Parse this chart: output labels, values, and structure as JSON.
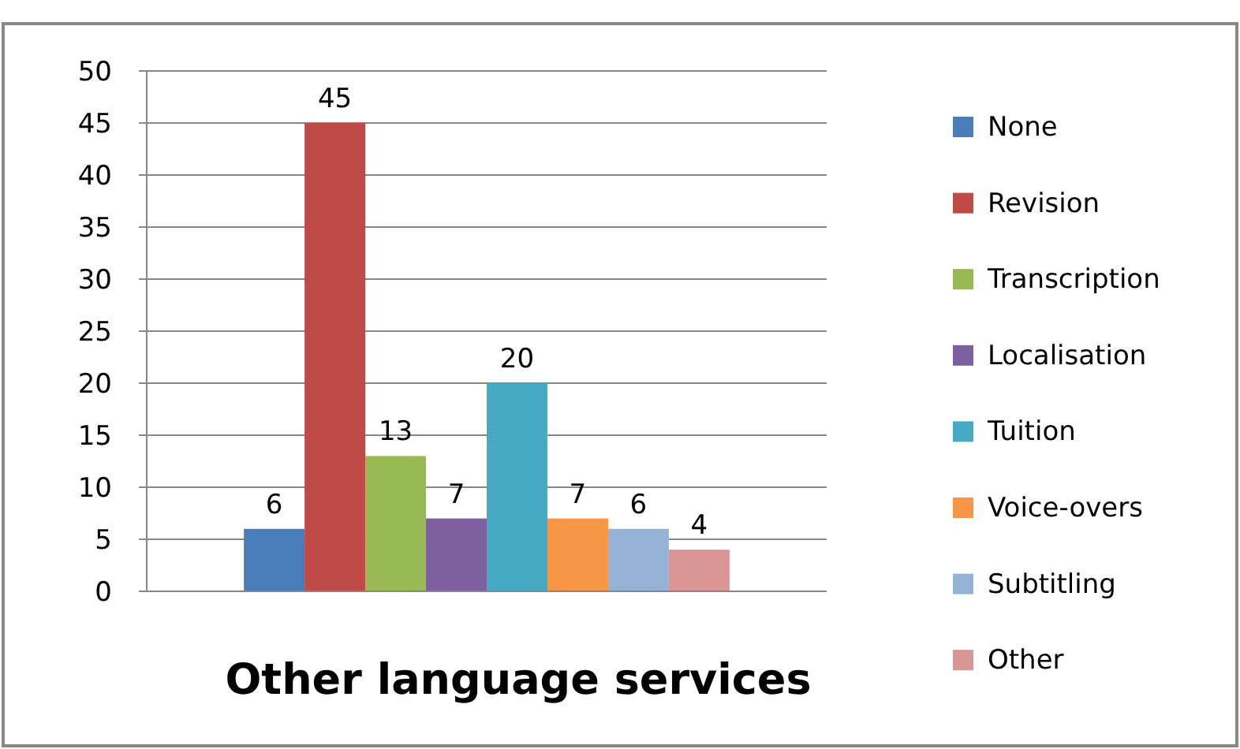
{
  "chart_data": {
    "type": "bar",
    "title": "Other language services",
    "categories": [
      null
    ],
    "series": [
      {
        "name": "None",
        "color": "#4a7ebb",
        "values": [
          6
        ]
      },
      {
        "name": "Revision",
        "color": "#be4b48",
        "values": [
          45
        ]
      },
      {
        "name": "Transcription",
        "color": "#98b954",
        "values": [
          13
        ]
      },
      {
        "name": "Localisation",
        "color": "#7d60a0",
        "values": [
          7
        ]
      },
      {
        "name": "Tuition",
        "color": "#46aac5",
        "values": [
          20
        ]
      },
      {
        "name": "Voice-overs",
        "color": "#f79646",
        "values": [
          7
        ]
      },
      {
        "name": "Subtitling",
        "color": "#95b3d7",
        "values": [
          6
        ]
      },
      {
        "name": "Other",
        "color": "#d99694",
        "values": [
          4
        ]
      }
    ],
    "ylim": [
      0,
      50
    ],
    "yticks": [
      0,
      5,
      10,
      15,
      20,
      25,
      30,
      35,
      40,
      45,
      50
    ],
    "grid": "y",
    "legend": "right",
    "data_labels": true
  }
}
